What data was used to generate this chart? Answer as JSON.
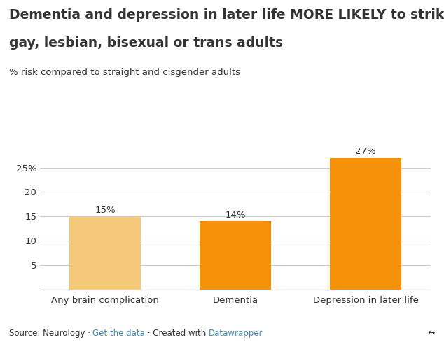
{
  "title_line1": "Dementia and depression in later life MORE LIKELY to strike",
  "title_line2": "gay, lesbian, bisexual or trans adults",
  "subtitle": "% risk compared to straight and cisgender adults",
  "categories": [
    "Any brain complication",
    "Dementia",
    "Depression in later life"
  ],
  "values": [
    15,
    14,
    27
  ],
  "bar_colors": [
    "#F5C97A",
    "#F5920A",
    "#F5920A"
  ],
  "value_labels": [
    "15%",
    "14%",
    "27%"
  ],
  "ylim": [
    0,
    30
  ],
  "yticks": [
    0,
    5,
    10,
    15,
    20,
    25
  ],
  "ytick_labels": [
    "",
    "5",
    "10",
    "15",
    "20",
    "25%"
  ],
  "source_text": "Source: Neurology · ",
  "link_text1": "Get the data",
  "link_text2": " · Created with ",
  "link_text3": "Datawrapper",
  "background_color": "#ffffff",
  "grid_color": "#cccccc",
  "text_color": "#333333",
  "link_color": "#3B8BBE",
  "title_fontsize": 13.5,
  "subtitle_fontsize": 9.5,
  "label_fontsize": 9.5,
  "tick_fontsize": 9.5,
  "source_fontsize": 8.5
}
